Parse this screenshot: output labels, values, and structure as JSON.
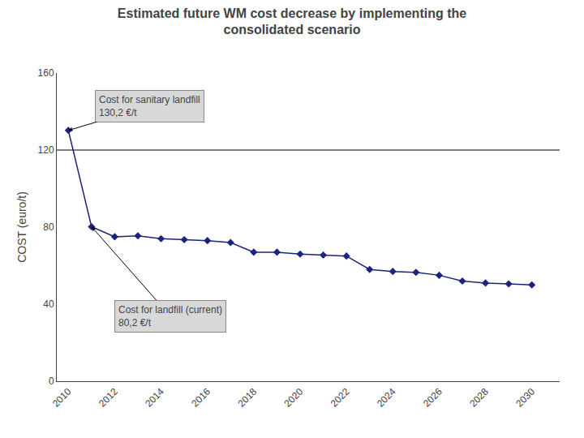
{
  "chart_data": {
    "type": "line",
    "title": "Estimated future WM cost decrease by implementing the\nconsolidated scenario",
    "ylabel": "COST (euro/t)",
    "x": [
      2010,
      2011,
      2012,
      2013,
      2014,
      2015,
      2016,
      2017,
      2018,
      2019,
      2020,
      2021,
      2022,
      2023,
      2024,
      2025,
      2026,
      2027,
      2028,
      2029,
      2030
    ],
    "values": [
      130.2,
      80.2,
      75.0,
      75.5,
      74.0,
      73.5,
      73.0,
      72.0,
      67.0,
      67.0,
      66.0,
      65.5,
      65.0,
      58.0,
      57.0,
      56.5,
      55.0,
      52.0,
      51.0,
      50.5,
      50.0
    ],
    "color": "#1a237e",
    "marker": "diamond",
    "xlim": [
      2009.5,
      2031.2
    ],
    "xticks": [
      2010,
      2012,
      2014,
      2016,
      2018,
      2020,
      2022,
      2024,
      2026,
      2028,
      2030
    ],
    "ylim": [
      0,
      160
    ],
    "yticks": [
      0,
      40,
      80,
      120,
      160
    ],
    "grid": false,
    "reference_line": {
      "y": 120,
      "color": "#000000"
    },
    "annotations": [
      {
        "text": "Cost for sanitary landfill\n130,2 €/t",
        "x": 2010,
        "y": 130.2
      },
      {
        "text": "Cost for landfill (current)\n80,2 €/t",
        "x": 2011,
        "y": 80.2
      }
    ]
  }
}
